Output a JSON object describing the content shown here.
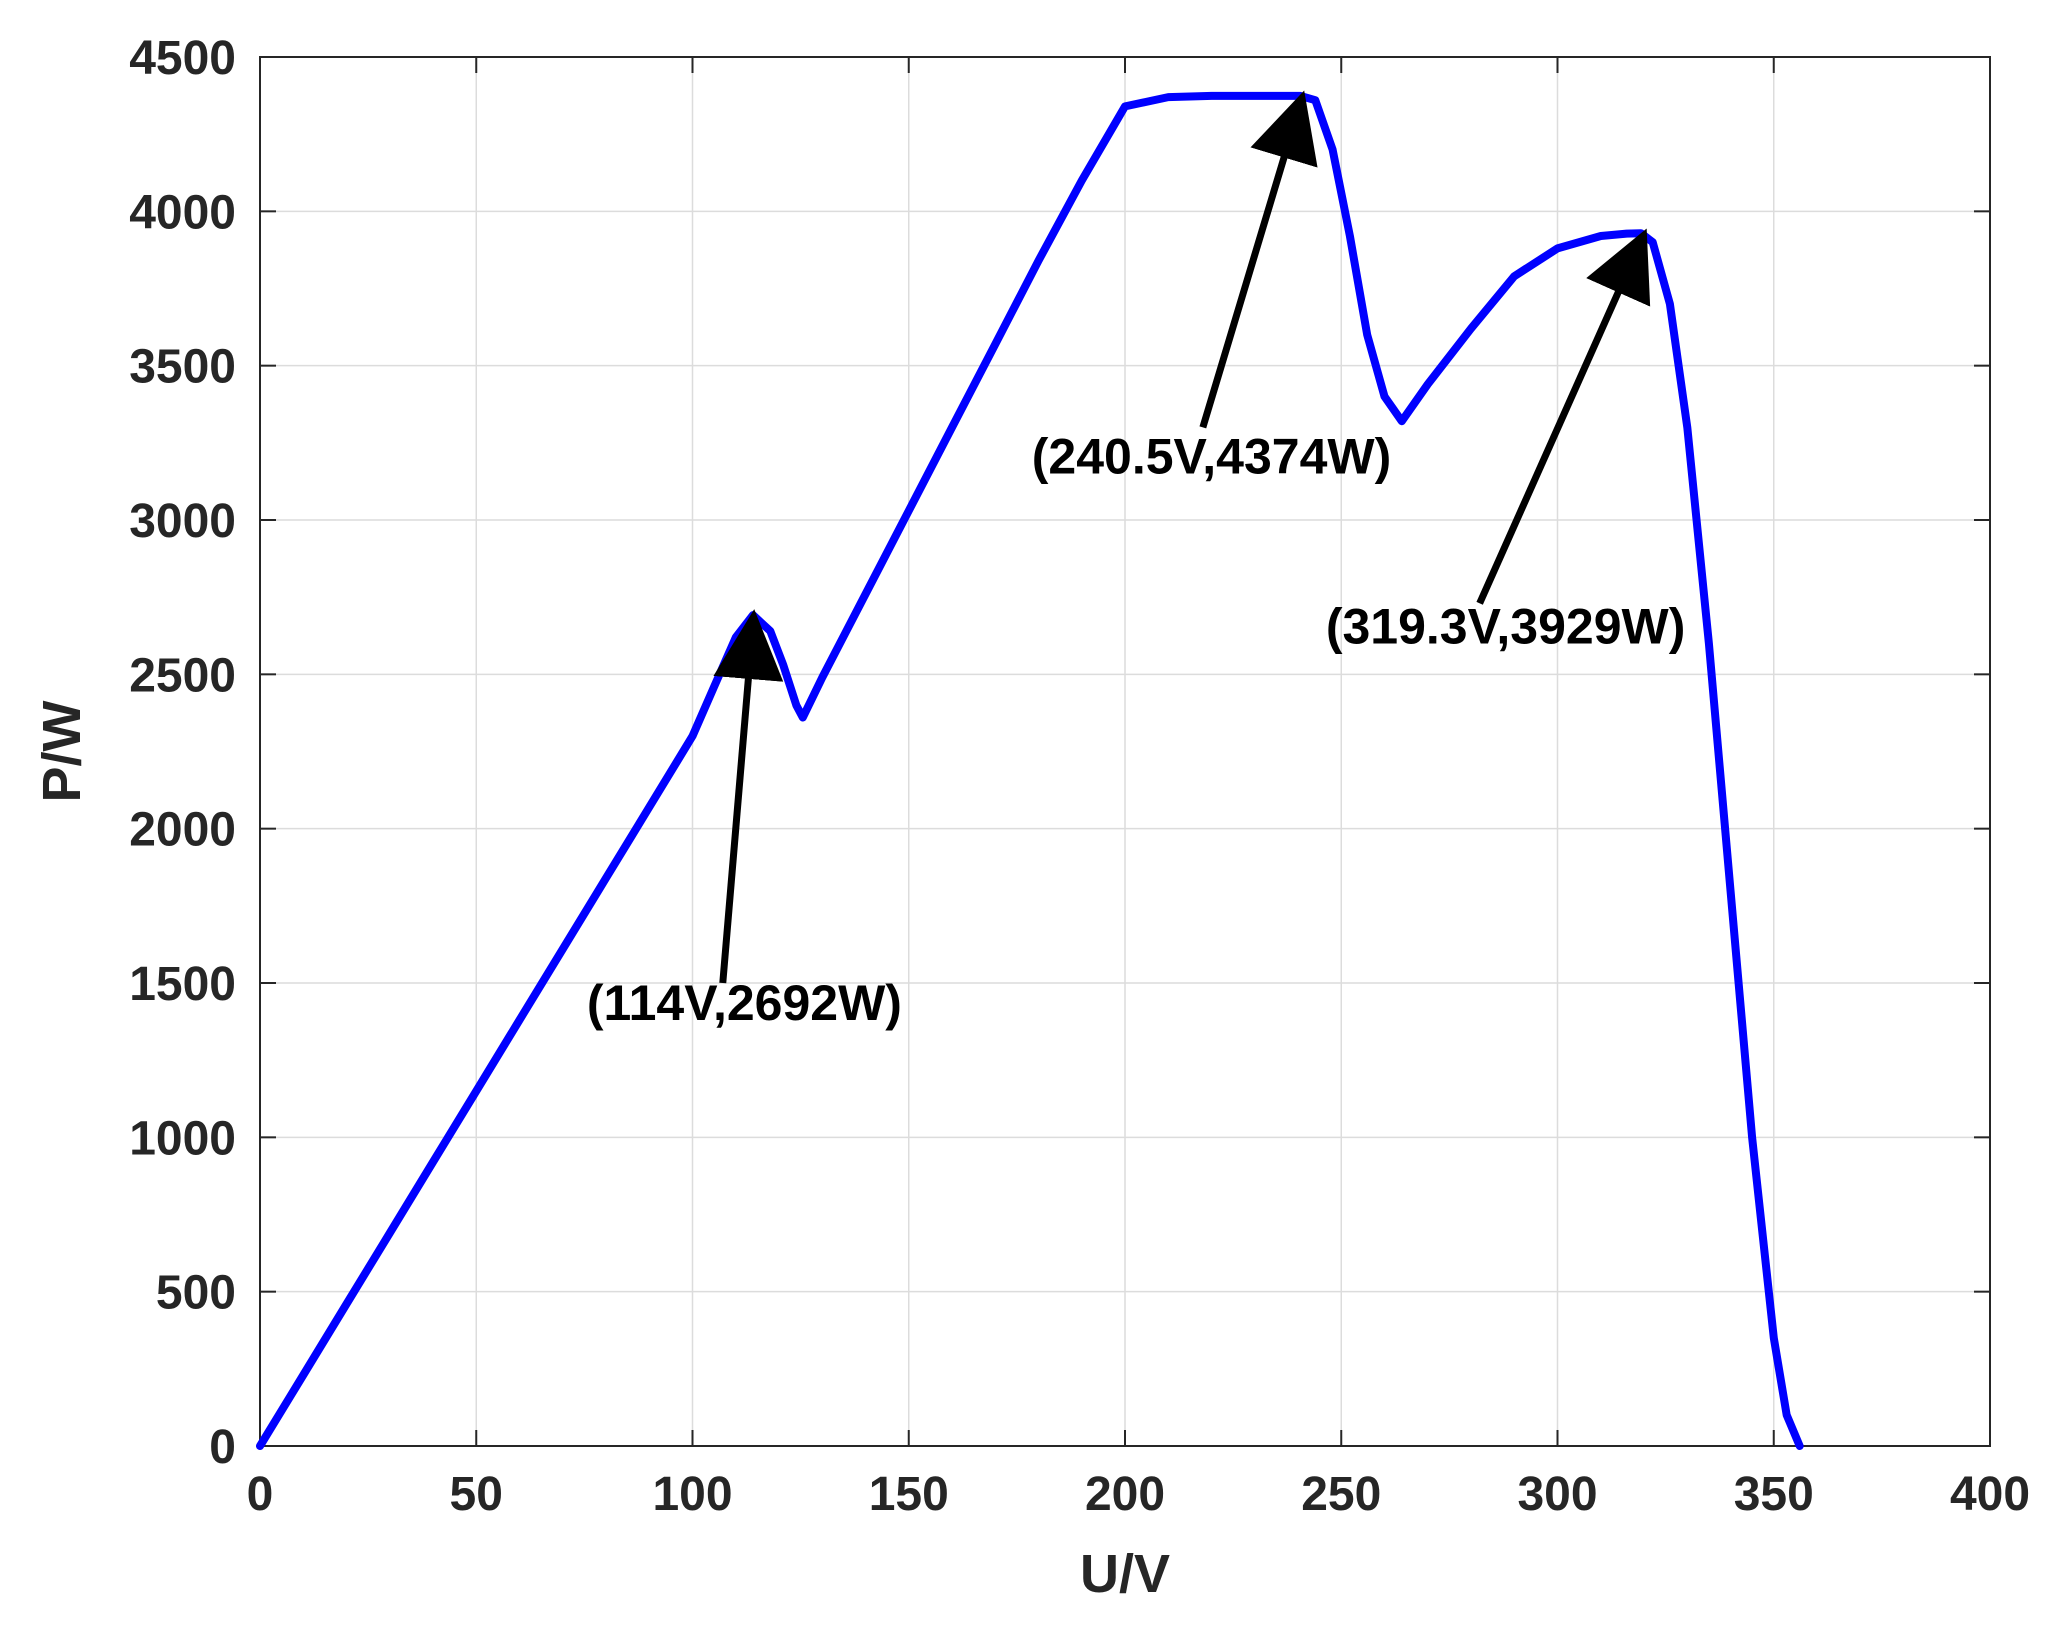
{
  "chart_data": {
    "type": "line",
    "title": "",
    "xlabel": "U/V",
    "ylabel": "P/W",
    "xlim": [
      0,
      400
    ],
    "ylim": [
      0,
      4500
    ],
    "xticks": [
      0,
      50,
      100,
      150,
      200,
      250,
      300,
      350,
      400
    ],
    "yticks": [
      0,
      500,
      1000,
      1500,
      2000,
      2500,
      3000,
      3500,
      4000,
      4500
    ],
    "grid": true,
    "colors": {
      "series": "#0000ff",
      "axis": "#262626",
      "grid": "#dcdcdc",
      "annotation": "#000000"
    },
    "series": [
      {
        "name": "",
        "x": [
          0,
          10,
          20,
          30,
          40,
          50,
          60,
          70,
          80,
          90,
          100,
          105,
          110,
          114,
          118,
          121,
          124,
          125.5,
          130,
          140,
          150,
          160,
          170,
          180,
          190,
          200,
          210,
          220,
          230,
          236,
          240.5,
          244,
          248,
          252,
          256,
          260,
          264,
          270,
          280,
          290,
          300,
          310,
          316,
          319.3,
          322,
          326,
          330,
          335,
          340,
          345,
          350,
          353,
          356
        ],
        "y": [
          0,
          230,
          460,
          690,
          920,
          1150,
          1380,
          1610,
          1840,
          2070,
          2300,
          2460,
          2620,
          2692,
          2640,
          2530,
          2400,
          2360,
          2490,
          2760,
          3030,
          3300,
          3570,
          3840,
          4100,
          4340,
          4370,
          4374,
          4374,
          4374,
          4374,
          4360,
          4200,
          3920,
          3600,
          3400,
          3320,
          3440,
          3620,
          3790,
          3880,
          3920,
          3928,
          3929,
          3900,
          3700,
          3300,
          2600,
          1800,
          1000,
          350,
          100,
          0
        ]
      }
    ],
    "annotations": [
      {
        "text": "(114V,2692W)",
        "point": [
          114,
          2692
        ],
        "tail": [
          107,
          1500
        ],
        "label_at": [
          112,
          1380
        ]
      },
      {
        "text": "(240.5V,4374W)",
        "point": [
          240.5,
          4374
        ],
        "tail": [
          218,
          3300
        ],
        "label_at": [
          220,
          3150
        ]
      },
      {
        "text": "(319.3V,3929W)",
        "point": [
          319.3,
          3929
        ],
        "tail": [
          282,
          2730
        ],
        "label_at": [
          288,
          2600
        ]
      }
    ]
  }
}
